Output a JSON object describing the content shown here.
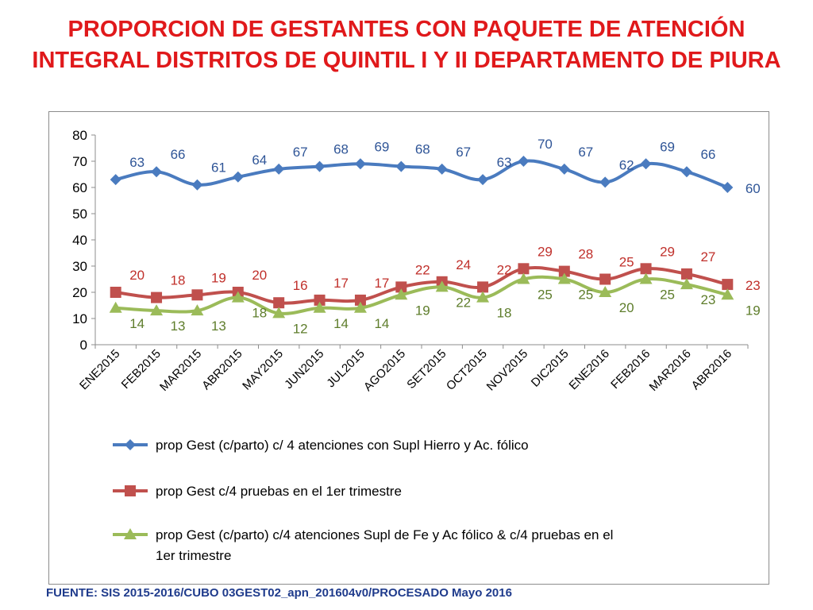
{
  "slide": {
    "title": "PROPORCION DE GESTANTES CON PAQUETE DE ATENCIÓN INTEGRAL  DISTRITOS DE QUINTIL I Y II DEPARTAMENTO DE PIURA",
    "footer": "FUENTE: SIS 2015-2016/CUBO 03GEST02_apn_201604v0/PROCESADO Mayo 2016"
  },
  "colors": {
    "title": "#e0191b",
    "footer": "#1f3b8c",
    "series_blue": "#4a7bbf",
    "series_red": "#c0504d",
    "series_green": "#9bbb59",
    "label_blue": "#2f5597",
    "label_red": "#c0302b",
    "label_green": "#5e7d2b",
    "axis": "#8c8c8c"
  },
  "chart_data": {
    "type": "line",
    "categories": [
      "ENE2015",
      "FEB2015",
      "MAR2015",
      "ABR2015",
      "MAY2015",
      "JUN2015",
      "JUL2015",
      "AGO2015",
      "SET2015",
      "OCT2015",
      "NOV2015",
      "DIC2015",
      "ENE2016",
      "FEB2016",
      "MAR2016",
      "ABR2016"
    ],
    "ylim": [
      0,
      80
    ],
    "yticks": [
      0,
      10,
      20,
      30,
      40,
      50,
      60,
      70,
      80
    ],
    "grid": false,
    "legend_position": "bottom",
    "series": [
      {
        "name": "prop Gest (c/parto) c/ 4 atenciones con Supl Hierro y Ac. fólico",
        "marker": "diamond",
        "values": [
          63,
          66,
          61,
          64,
          67,
          68,
          69,
          68,
          67,
          63,
          70,
          67,
          62,
          69,
          66,
          60
        ],
        "data_labels": [
          63,
          66,
          61,
          64,
          67,
          68,
          69,
          68,
          67,
          63,
          70,
          67,
          62,
          69,
          66,
          60
        ]
      },
      {
        "name": "prop Gest c/4 pruebas en el 1er trimestre",
        "marker": "square",
        "values": [
          20,
          18,
          19,
          20,
          16,
          17,
          17,
          22,
          24,
          22,
          29,
          28,
          25,
          29,
          27,
          23
        ],
        "data_labels": [
          20,
          18,
          19,
          20,
          16,
          17,
          17,
          22,
          24,
          22,
          29,
          28,
          25,
          29,
          27,
          23
        ]
      },
      {
        "name": "prop Gest (c/parto) c/4 atenciones Supl de Fe y Ac fólico & c/4 pruebas en el 1er trimestre",
        "marker": "triangle",
        "values": [
          14,
          13,
          13,
          18,
          12,
          14,
          14,
          19,
          22,
          18,
          25,
          25,
          20,
          25,
          23,
          19
        ],
        "data_labels": [
          14,
          13,
          13,
          18,
          12,
          14,
          14,
          19,
          22,
          18,
          25,
          25,
          20,
          25,
          23,
          19
        ]
      }
    ]
  }
}
